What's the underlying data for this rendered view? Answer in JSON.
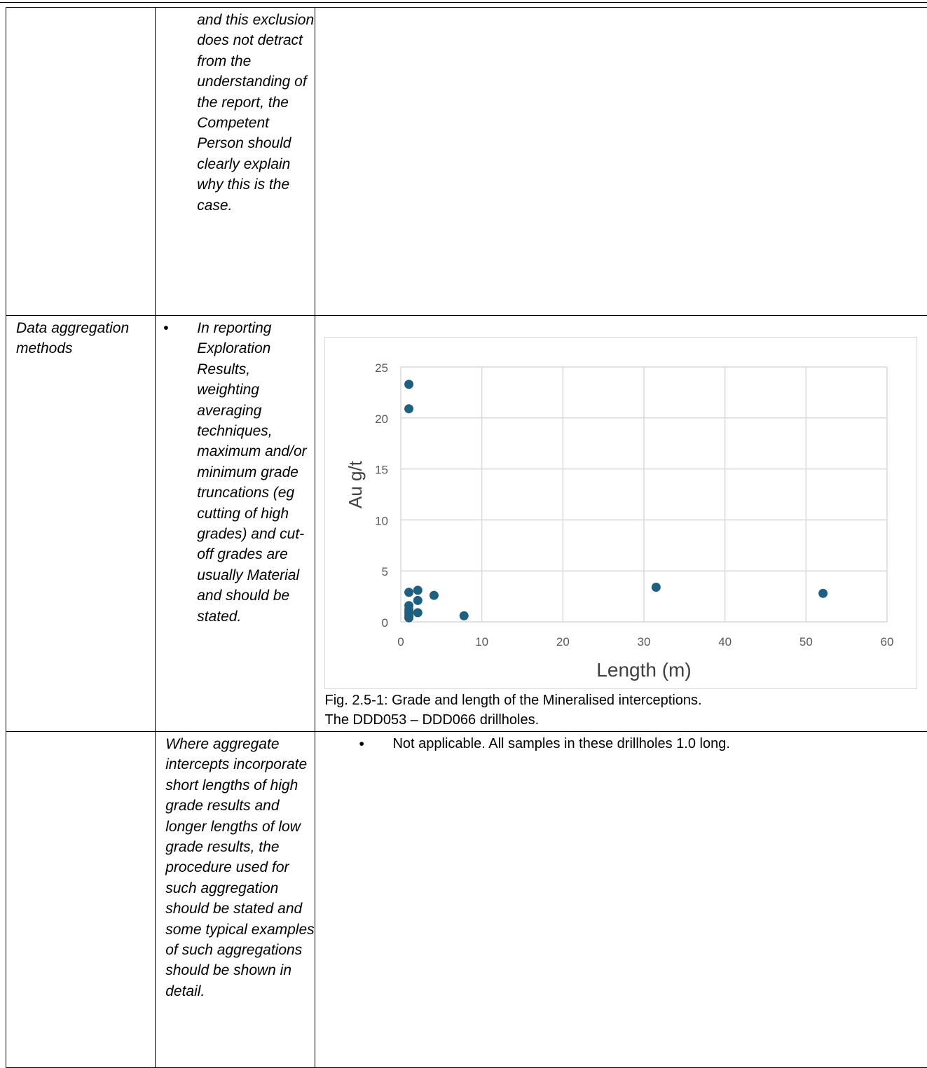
{
  "rows": [
    {
      "criteria": "",
      "explanation": "and this exclusion does not detract from the understanding of the report, the Competent Person should clearly explain why this is the case.",
      "commentary": ""
    },
    {
      "criteria": "Data aggregation methods",
      "explanation": "In reporting Exploration Results, weighting averaging techniques, maximum and/or minimum grade truncations (eg cutting of high grades) and cut-off grades are usually Material and should be stated.",
      "caption_line1": "Fig. 2.5-1: Grade and length of the Mineralised interceptions.",
      "caption_line2": "The DDD053 – DDD066 drillholes."
    },
    {
      "criteria": "",
      "explanation": "Where aggregate intercepts incorporate short lengths of high grade results and longer lengths of low grade results, the procedure used for such aggregation should be stated and some typical examples of such aggregations should be shown in detail.",
      "commentary": "Not applicable. All samples in these drillholes 1.0  long."
    }
  ],
  "chart_data": {
    "type": "scatter",
    "xlabel": "Length (m)",
    "ylabel": "Au g/t",
    "xlim": [
      0,
      60
    ],
    "ylim": [
      0,
      25
    ],
    "xticks": [
      0,
      10,
      20,
      30,
      40,
      50,
      60
    ],
    "yticks": [
      0,
      5,
      10,
      15,
      20,
      25
    ],
    "grid": true,
    "marker_color": "#1f5f7f",
    "points": [
      {
        "x": 1,
        "y": 23.3
      },
      {
        "x": 1,
        "y": 20.9
      },
      {
        "x": 1,
        "y": 2.9
      },
      {
        "x": 1,
        "y": 1.6
      },
      {
        "x": 1,
        "y": 1.2
      },
      {
        "x": 1,
        "y": 0.9
      },
      {
        "x": 1,
        "y": 0.6
      },
      {
        "x": 1,
        "y": 0.4
      },
      {
        "x": 2.1,
        "y": 3.1
      },
      {
        "x": 2.1,
        "y": 2.1
      },
      {
        "x": 2.1,
        "y": 0.9
      },
      {
        "x": 4.1,
        "y": 2.6
      },
      {
        "x": 7.8,
        "y": 0.6
      },
      {
        "x": 31.5,
        "y": 3.4
      },
      {
        "x": 52.1,
        "y": 2.8
      }
    ]
  }
}
